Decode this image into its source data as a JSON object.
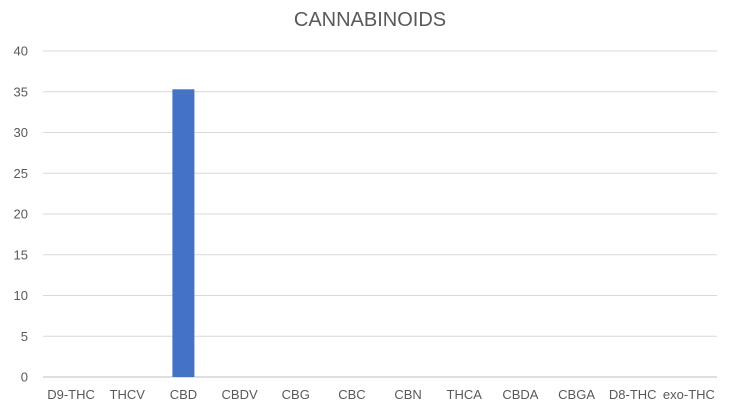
{
  "chart_data": {
    "type": "bar",
    "title": "CANNABINOIDS",
    "xlabel": "",
    "ylabel": "",
    "categories": [
      "D9-THC",
      "THCV",
      "CBD",
      "CBDV",
      "CBG",
      "CBC",
      "CBN",
      "THCA",
      "CBDA",
      "CBGA",
      "D8-THC",
      "exo-THC"
    ],
    "values": [
      0,
      0,
      35.3,
      0,
      0,
      0,
      0,
      0,
      0,
      0,
      0,
      0
    ],
    "ylim": [
      0,
      40
    ],
    "yticks": [
      0,
      5,
      10,
      15,
      20,
      25,
      30,
      35,
      40
    ],
    "grid": true,
    "legend": "none",
    "colors": {
      "bar": "#4472C4",
      "grid": "#d9d9d9",
      "axis": "#bfbfbf",
      "text": "#595959",
      "title": "#595959"
    }
  }
}
